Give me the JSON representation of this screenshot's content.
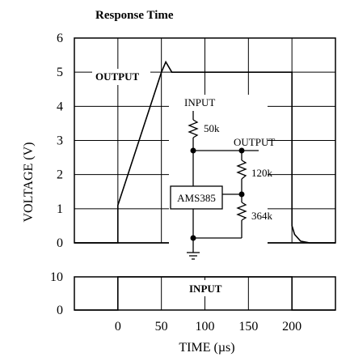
{
  "chart_data": [
    {
      "type": "line",
      "panel": "output",
      "title": "Response Time",
      "ylabel": "VOLTAGE (V)",
      "ylim": [
        0,
        6
      ],
      "yticks": [
        "6",
        "5",
        "4",
        "3",
        "2",
        "1",
        "0"
      ],
      "xlim": [
        -50,
        250
      ],
      "grid": true,
      "series": [
        {
          "name": "OUTPUT",
          "x": [
            -50,
            0,
            0,
            50,
            55,
            62,
            80,
            200,
            200,
            203,
            210,
            220,
            250
          ],
          "y": [
            0,
            0,
            1.1,
            5.0,
            5.3,
            5.0,
            5.0,
            5.0,
            0.5,
            0.25,
            0.05,
            0,
            0
          ]
        }
      ]
    },
    {
      "type": "line",
      "panel": "input",
      "ylim": [
        0,
        10
      ],
      "yticks": [
        "10",
        "0"
      ],
      "xlim": [
        -50,
        250
      ],
      "xlabel": "TIME (µs)",
      "xticks": [
        "0",
        "50",
        "100",
        "150",
        "200"
      ],
      "grid": true,
      "series": [
        {
          "name": "INPUT",
          "x": [
            -50,
            0,
            0,
            200,
            200,
            250
          ],
          "y": [
            0,
            0,
            10,
            10,
            0,
            0
          ]
        }
      ]
    }
  ],
  "schematic": {
    "input_label": "INPUT",
    "output_label": "OUTPUT",
    "r1": "50k",
    "r2": "120k",
    "r3": "364k",
    "chip": "AMS385"
  }
}
